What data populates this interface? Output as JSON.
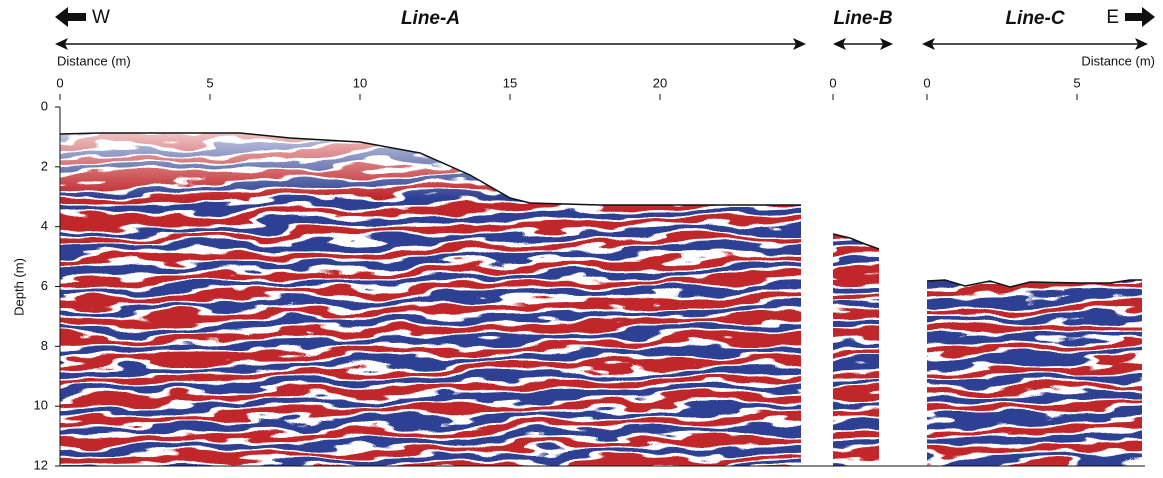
{
  "direction": {
    "west": "W",
    "east": "E"
  },
  "distance_label_left": "Distance (m)",
  "distance_label_right": "Distance (m)",
  "depth_axis": {
    "label": "Depth (m)",
    "ylim": [
      0,
      12
    ],
    "yticks": [
      0,
      2,
      4,
      6,
      8,
      10,
      12
    ]
  },
  "panels": [
    {
      "title": "Line-A",
      "xlim": [
        0,
        24.8
      ],
      "xticks": [
        0,
        5,
        10,
        15,
        20
      ]
    },
    {
      "title": "Line-B",
      "xlim": [
        0,
        1.5
      ],
      "xticks": [
        0
      ]
    },
    {
      "title": "Line-C",
      "xlim": [
        0,
        7.2
      ],
      "xticks": [
        0,
        5
      ]
    }
  ]
}
